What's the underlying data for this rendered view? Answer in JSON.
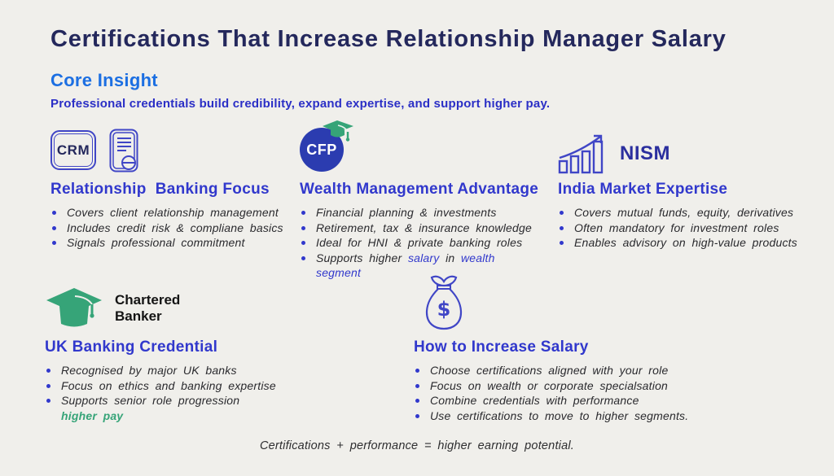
{
  "page": {
    "title": "Certifications That Increase Relationship Manager Salary",
    "section_label": "Core Insight",
    "section_text": "Professional credentials build credibility, expand expertise, and support higher pay.",
    "footer": "Certifications + performance = higher earning potential."
  },
  "colors": {
    "background": "#f0efeb",
    "title_navy": "#24285c",
    "core_insight_blue": "#1c6fe2",
    "subtitle_indigo": "#2b2fc6",
    "heading_blue": "#3138cc",
    "icon_blue": "#4046c6",
    "cfp_circle_blue": "#2b3cb0",
    "green": "#36a478",
    "body_text": "#2a2a2e"
  },
  "cards": [
    {
      "icons": [
        "crm-badge-icon",
        "certificate-icon"
      ],
      "badge_label": "CRM",
      "heading": "Relationship  Banking Focus",
      "bullets": [
        {
          "marker": true,
          "segments": [
            {
              "t": "Covers client relationship management"
            }
          ]
        },
        {
          "marker": true,
          "segments": [
            {
              "t": "Includes credit risk & compliane basics"
            }
          ]
        },
        {
          "marker": true,
          "segments": [
            {
              "t": "Signals professional commitment"
            }
          ]
        }
      ]
    },
    {
      "icons": [
        "cfp-circle-icon",
        "graduation-cap-icon"
      ],
      "badge_label": "CFP",
      "heading": "Wealth Management Advantage",
      "bullets": [
        {
          "marker": true,
          "segments": [
            {
              "t": "Financial planning & investments"
            }
          ]
        },
        {
          "marker": true,
          "segments": [
            {
              "t": "Retirement, tax & insurance knowledge"
            }
          ]
        },
        {
          "marker": true,
          "segments": [
            {
              "t": "Ideal for HNI & private banking roles"
            }
          ]
        },
        {
          "marker": true,
          "segments": [
            {
              "t": "Supports higher "
            },
            {
              "t": "salary",
              "c": "blue"
            },
            {
              "t": " in "
            },
            {
              "t": "wealth segment",
              "c": "blue"
            }
          ]
        }
      ]
    },
    {
      "icons": [
        "bar-chart-growth-icon"
      ],
      "badge_label": "NISM",
      "heading": "India Market Expertise",
      "bullets": [
        {
          "marker": true,
          "segments": [
            {
              "t": "Covers mutual funds, equity, derivatives"
            }
          ]
        },
        {
          "marker": true,
          "segments": [
            {
              "t": "Often mandatory for investment roles"
            }
          ]
        },
        {
          "marker": true,
          "segments": [
            {
              "t": "Enables advisory on high-value products"
            }
          ]
        }
      ]
    },
    {
      "icons": [
        "graduation-cap-icon"
      ],
      "badge_label": "Chartered Banker",
      "heading": "UK Banking Credential",
      "bullets": [
        {
          "marker": true,
          "segments": [
            {
              "t": "Recognised by major UK banks"
            }
          ]
        },
        {
          "marker": true,
          "segments": [
            {
              "t": "Focus on ethics and banking expertise"
            }
          ]
        },
        {
          "marker": true,
          "segments": [
            {
              "t": "Supports senior role progression"
            }
          ]
        },
        {
          "marker": false,
          "segments": [
            {
              "t": "higher pay",
              "c": "green"
            }
          ]
        }
      ]
    },
    {
      "icons": [
        "money-bag-icon"
      ],
      "badge_label": "",
      "heading": "How to Increase Salary",
      "bullets": [
        {
          "marker": true,
          "segments": [
            {
              "t": "Choose certifications aligned with your role"
            }
          ]
        },
        {
          "marker": true,
          "segments": [
            {
              "t": "Focus on wealth or corporate specialsation"
            }
          ]
        },
        {
          "marker": true,
          "segments": [
            {
              "t": "Combine credentials with performance"
            }
          ]
        },
        {
          "marker": true,
          "segments": [
            {
              "t": "Use certifications to move to higher segments."
            }
          ]
        }
      ]
    }
  ]
}
